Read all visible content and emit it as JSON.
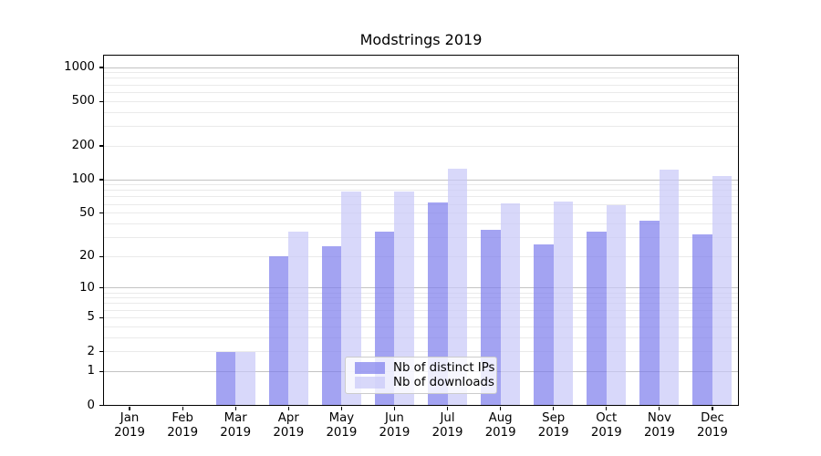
{
  "figure": {
    "title": "Modstrings 2019"
  },
  "chart_data": {
    "type": "bar",
    "title": "Modstrings 2019",
    "xlabel": "",
    "ylabel": "",
    "yscale": "log1p",
    "ylim": [
      0,
      1300
    ],
    "yticks": [
      0,
      1,
      2,
      5,
      10,
      20,
      50,
      100,
      200,
      500,
      1000
    ],
    "grid": "horizontal major+minor",
    "categories": [
      "Jan",
      "Feb",
      "Mar",
      "Apr",
      "May",
      "Jun",
      "Jul",
      "Aug",
      "Sep",
      "Oct",
      "Nov",
      "Dec"
    ],
    "category_year_line": "2019",
    "series": [
      {
        "name": "Nb of distinct IPs",
        "color": "rgba(124,124,236,0.7)",
        "values": [
          0,
          0,
          2,
          20,
          25,
          34,
          62,
          35,
          26,
          34,
          43,
          32
        ]
      },
      {
        "name": "Nb of downloads",
        "color": "rgba(199,199,248,0.7)",
        "values": [
          0,
          0,
          2,
          34,
          78,
          78,
          125,
          61,
          63,
          59,
          124,
          108
        ]
      }
    ],
    "legend": {
      "position": "lower center",
      "entries": [
        "Nb of distinct IPs",
        "Nb of downloads"
      ]
    }
  },
  "colors": {
    "bar_dark": "rgba(124,124,236,0.7)",
    "bar_light": "rgba(199,199,248,0.7)",
    "grid_major": "#c3c3c3",
    "grid_minor": "#eaeaea",
    "spine": "#000000",
    "legend_border": "#cccccc",
    "legend_bg": "rgba(255,255,255,0.8)"
  }
}
